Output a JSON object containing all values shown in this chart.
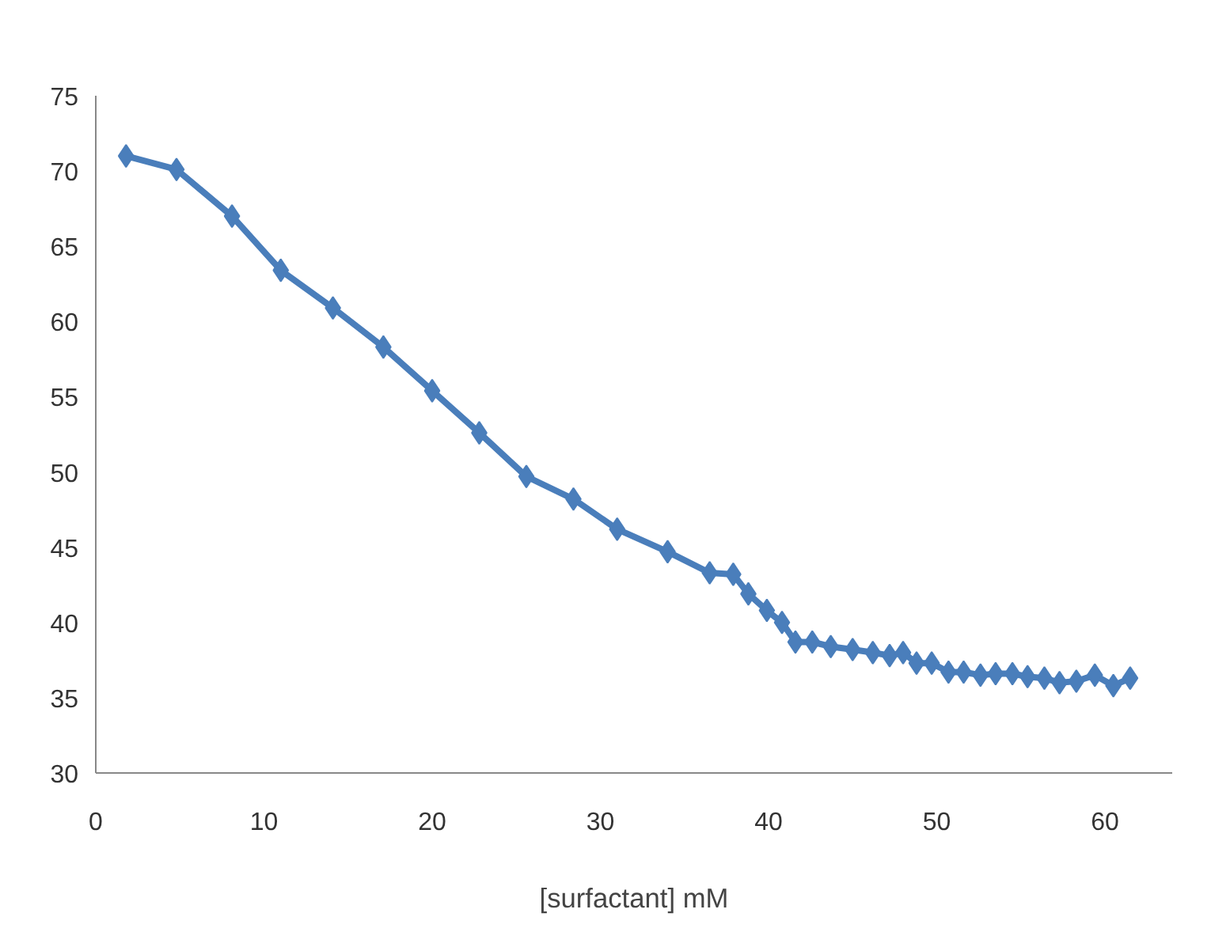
{
  "chart_data": {
    "type": "line",
    "xlabel": "[surfactant] mM",
    "x": [
      1.8,
      4.8,
      8.1,
      11.0,
      14.1,
      17.1,
      20.0,
      22.8,
      25.6,
      28.4,
      31.0,
      34.0,
      36.5,
      37.9,
      38.8,
      39.9,
      40.8,
      41.6,
      42.6,
      43.7,
      45.0,
      46.2,
      47.2,
      48.0,
      48.8,
      49.7,
      50.7,
      51.6,
      52.6,
      53.5,
      54.5,
      55.4,
      56.4,
      57.3,
      58.3,
      59.4,
      60.5,
      61.5
    ],
    "series": [
      {
        "color": "#4a7ebb",
        "values": [
          71.0,
          70.1,
          67.0,
          63.4,
          60.9,
          58.3,
          55.4,
          52.6,
          49.7,
          48.2,
          46.2,
          44.7,
          43.3,
          43.2,
          41.9,
          40.8,
          40.0,
          38.7,
          38.7,
          38.4,
          38.2,
          38.0,
          37.8,
          38.0,
          37.3,
          37.3,
          36.7,
          36.7,
          36.5,
          36.6,
          36.6,
          36.4,
          36.3,
          36.0,
          36.1,
          36.5,
          35.8,
          36.3
        ]
      }
    ],
    "xlim": [
      0,
      64
    ],
    "ylim": [
      30,
      75
    ],
    "xticks": [
      0,
      10,
      20,
      30,
      40,
      50,
      60
    ],
    "yticks": [
      30,
      35,
      40,
      45,
      50,
      55,
      60,
      65,
      70,
      75
    ],
    "grid": false,
    "marker": "diamond",
    "line_style": "solid"
  }
}
